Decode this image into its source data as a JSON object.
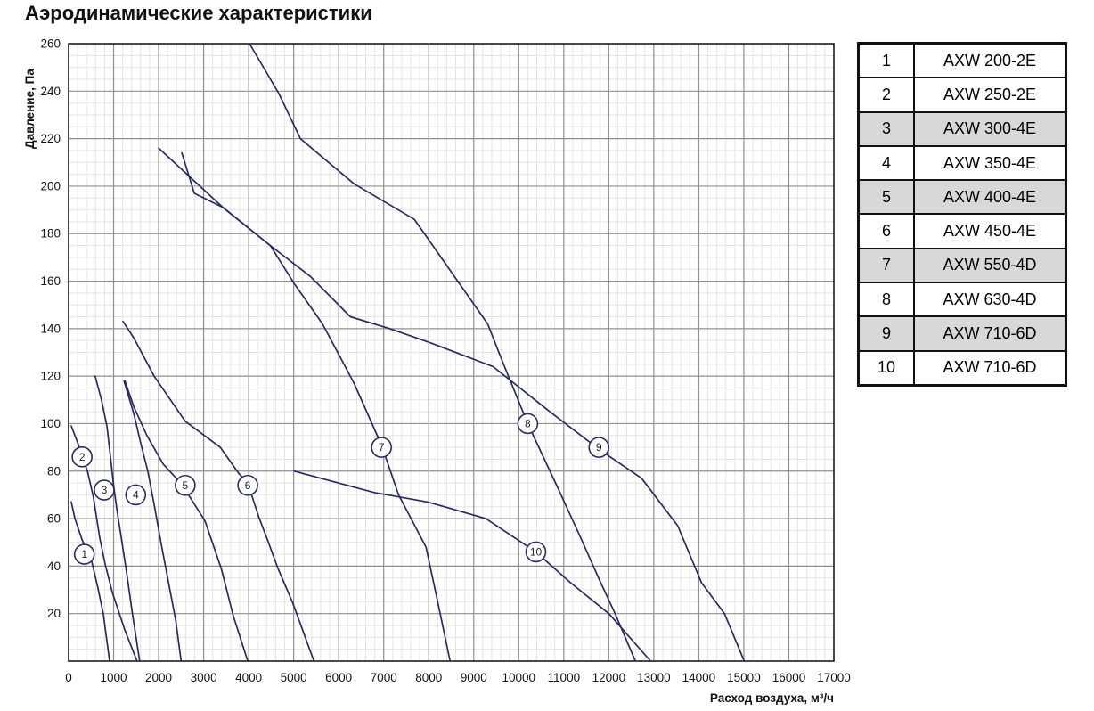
{
  "page": {
    "title": "Аэродинамические характеристики"
  },
  "chart_data": {
    "type": "line",
    "title": "Аэродинамические характеристики",
    "xlabel": "Расход воздуха, м³/ч",
    "ylabel": "Давление, Па",
    "xlim": [
      0,
      17000
    ],
    "ylim": [
      0,
      260
    ],
    "x_ticks": [
      0,
      1000,
      2000,
      3000,
      4000,
      5000,
      6000,
      7000,
      8000,
      9000,
      10000,
      11000,
      12000,
      13000,
      14000,
      15000,
      16000,
      17000
    ],
    "y_ticks": [
      20,
      40,
      60,
      80,
      100,
      120,
      140,
      160,
      180,
      200,
      220,
      240,
      260
    ],
    "x_minor_step": 200,
    "y_minor_step": 5,
    "grid": true,
    "legend_position": "right-table",
    "colors": {
      "curve": "#2a2a63",
      "grid_major": "#8f8f8f",
      "grid_minor": "#e3e3e6",
      "axis": "#1c1c1c",
      "marker_fill": "#ffffff",
      "table_shaded_row": "#d8d8d8"
    },
    "series": [
      {
        "id": "1",
        "name": "AXW 200-2E",
        "marker_at": [
          350,
          45
        ],
        "points": [
          [
            60,
            67
          ],
          [
            140,
            60
          ],
          [
            300,
            51
          ],
          [
            500,
            43
          ],
          [
            650,
            31
          ],
          [
            770,
            20
          ],
          [
            910,
            0
          ]
        ]
      },
      {
        "id": "2",
        "name": "AXW 250-2E",
        "marker_at": [
          300,
          86
        ],
        "points": [
          [
            60,
            99
          ],
          [
            220,
            91
          ],
          [
            300,
            86
          ],
          [
            420,
            80
          ],
          [
            550,
            69
          ],
          [
            690,
            52
          ],
          [
            810,
            41
          ],
          [
            970,
            29
          ],
          [
            1250,
            13
          ],
          [
            1520,
            0
          ]
        ]
      },
      {
        "id": "3",
        "name": "AXW 300-4E",
        "marker_at": [
          790,
          72
        ],
        "points": [
          [
            590,
            120
          ],
          [
            730,
            110
          ],
          [
            850,
            99
          ],
          [
            930,
            86
          ],
          [
            1000,
            74
          ],
          [
            1070,
            64
          ],
          [
            1170,
            52
          ],
          [
            1290,
            37
          ],
          [
            1410,
            21
          ],
          [
            1580,
            0
          ]
        ]
      },
      {
        "id": "4",
        "name": "AXW 350-4E",
        "marker_at": [
          1490,
          70
        ],
        "points": [
          [
            1230,
            118
          ],
          [
            1450,
            104
          ],
          [
            1600,
            92
          ],
          [
            1760,
            80
          ],
          [
            1900,
            66
          ],
          [
            2050,
            50
          ],
          [
            2230,
            32
          ],
          [
            2380,
            17
          ],
          [
            2500,
            0
          ]
        ]
      },
      {
        "id": "5",
        "name": "AXW 400-4E",
        "marker_at": [
          2590,
          74
        ],
        "points": [
          [
            1250,
            118
          ],
          [
            1450,
            107
          ],
          [
            1740,
            95
          ],
          [
            2100,
            83
          ],
          [
            2440,
            76
          ],
          [
            2630,
            71
          ],
          [
            3030,
            59
          ],
          [
            3390,
            39
          ],
          [
            3660,
            19
          ],
          [
            3980,
            0
          ]
        ]
      },
      {
        "id": "6",
        "name": "AXW 450-4E",
        "marker_at": [
          3980,
          74
        ],
        "points": [
          [
            1210,
            143
          ],
          [
            1450,
            136
          ],
          [
            1900,
            120
          ],
          [
            2590,
            101
          ],
          [
            3370,
            90
          ],
          [
            3780,
            79
          ],
          [
            3980,
            75
          ],
          [
            4220,
            61
          ],
          [
            4420,
            51
          ],
          [
            4650,
            39
          ],
          [
            4970,
            25
          ],
          [
            5450,
            0
          ]
        ]
      },
      {
        "id": "7",
        "name": "AXW 550-4D",
        "marker_at": [
          6950,
          90
        ],
        "points": [
          [
            2000,
            216
          ],
          [
            3430,
            191
          ],
          [
            4480,
            175
          ],
          [
            5010,
            159
          ],
          [
            5640,
            142
          ],
          [
            6340,
            117
          ],
          [
            6950,
            91
          ],
          [
            7330,
            70
          ],
          [
            7940,
            48
          ],
          [
            8200,
            25
          ],
          [
            8475,
            0
          ]
        ]
      },
      {
        "id": "8",
        "name": "AXW 630-4D",
        "marker_at": [
          10200,
          100
        ],
        "points": [
          [
            4020,
            260
          ],
          [
            4670,
            239
          ],
          [
            5150,
            220
          ],
          [
            6340,
            201
          ],
          [
            7680,
            186
          ],
          [
            9310,
            142
          ],
          [
            9620,
            127
          ],
          [
            10200,
            100
          ],
          [
            10890,
            72
          ],
          [
            11350,
            53
          ],
          [
            11820,
            33
          ],
          [
            12140,
            20
          ],
          [
            12590,
            0
          ]
        ]
      },
      {
        "id": "9",
        "name": "AXW 710-6D",
        "marker_at": [
          11780,
          90
        ],
        "points": [
          [
            2515,
            214
          ],
          [
            2790,
            197
          ],
          [
            3430,
            191
          ],
          [
            4480,
            175
          ],
          [
            5370,
            162
          ],
          [
            6260,
            145
          ],
          [
            7130,
            140
          ],
          [
            8040,
            134
          ],
          [
            9430,
            124
          ],
          [
            10690,
            105
          ],
          [
            11800,
            89
          ],
          [
            12730,
            77
          ],
          [
            13530,
            57
          ],
          [
            14060,
            33
          ],
          [
            14570,
            20
          ],
          [
            15010,
            0
          ]
        ]
      },
      {
        "id": "10",
        "name": "AXW 710-6D",
        "marker_at": [
          10380,
          46
        ],
        "points": [
          [
            5010,
            80
          ],
          [
            6790,
            71
          ],
          [
            7980,
            67
          ],
          [
            9270,
            60
          ],
          [
            10380,
            46
          ],
          [
            11150,
            33
          ],
          [
            12000,
            20
          ],
          [
            12930,
            0
          ]
        ]
      }
    ]
  },
  "legend_table": {
    "rows": [
      {
        "num": "1",
        "model": "AXW 200-2E",
        "shaded": false
      },
      {
        "num": "2",
        "model": "AXW 250-2E",
        "shaded": false
      },
      {
        "num": "3",
        "model": "AXW 300-4E",
        "shaded": true
      },
      {
        "num": "4",
        "model": "AXW 350-4E",
        "shaded": false
      },
      {
        "num": "5",
        "model": "AXW 400-4E",
        "shaded": true
      },
      {
        "num": "6",
        "model": "AXW 450-4E",
        "shaded": false
      },
      {
        "num": "7",
        "model": "AXW 550-4D",
        "shaded": true
      },
      {
        "num": "8",
        "model": "AXW 630-4D",
        "shaded": false
      },
      {
        "num": "9",
        "model": "AXW 710-6D",
        "shaded": true
      },
      {
        "num": "10",
        "model": "AXW 710-6D",
        "shaded": false
      }
    ]
  }
}
